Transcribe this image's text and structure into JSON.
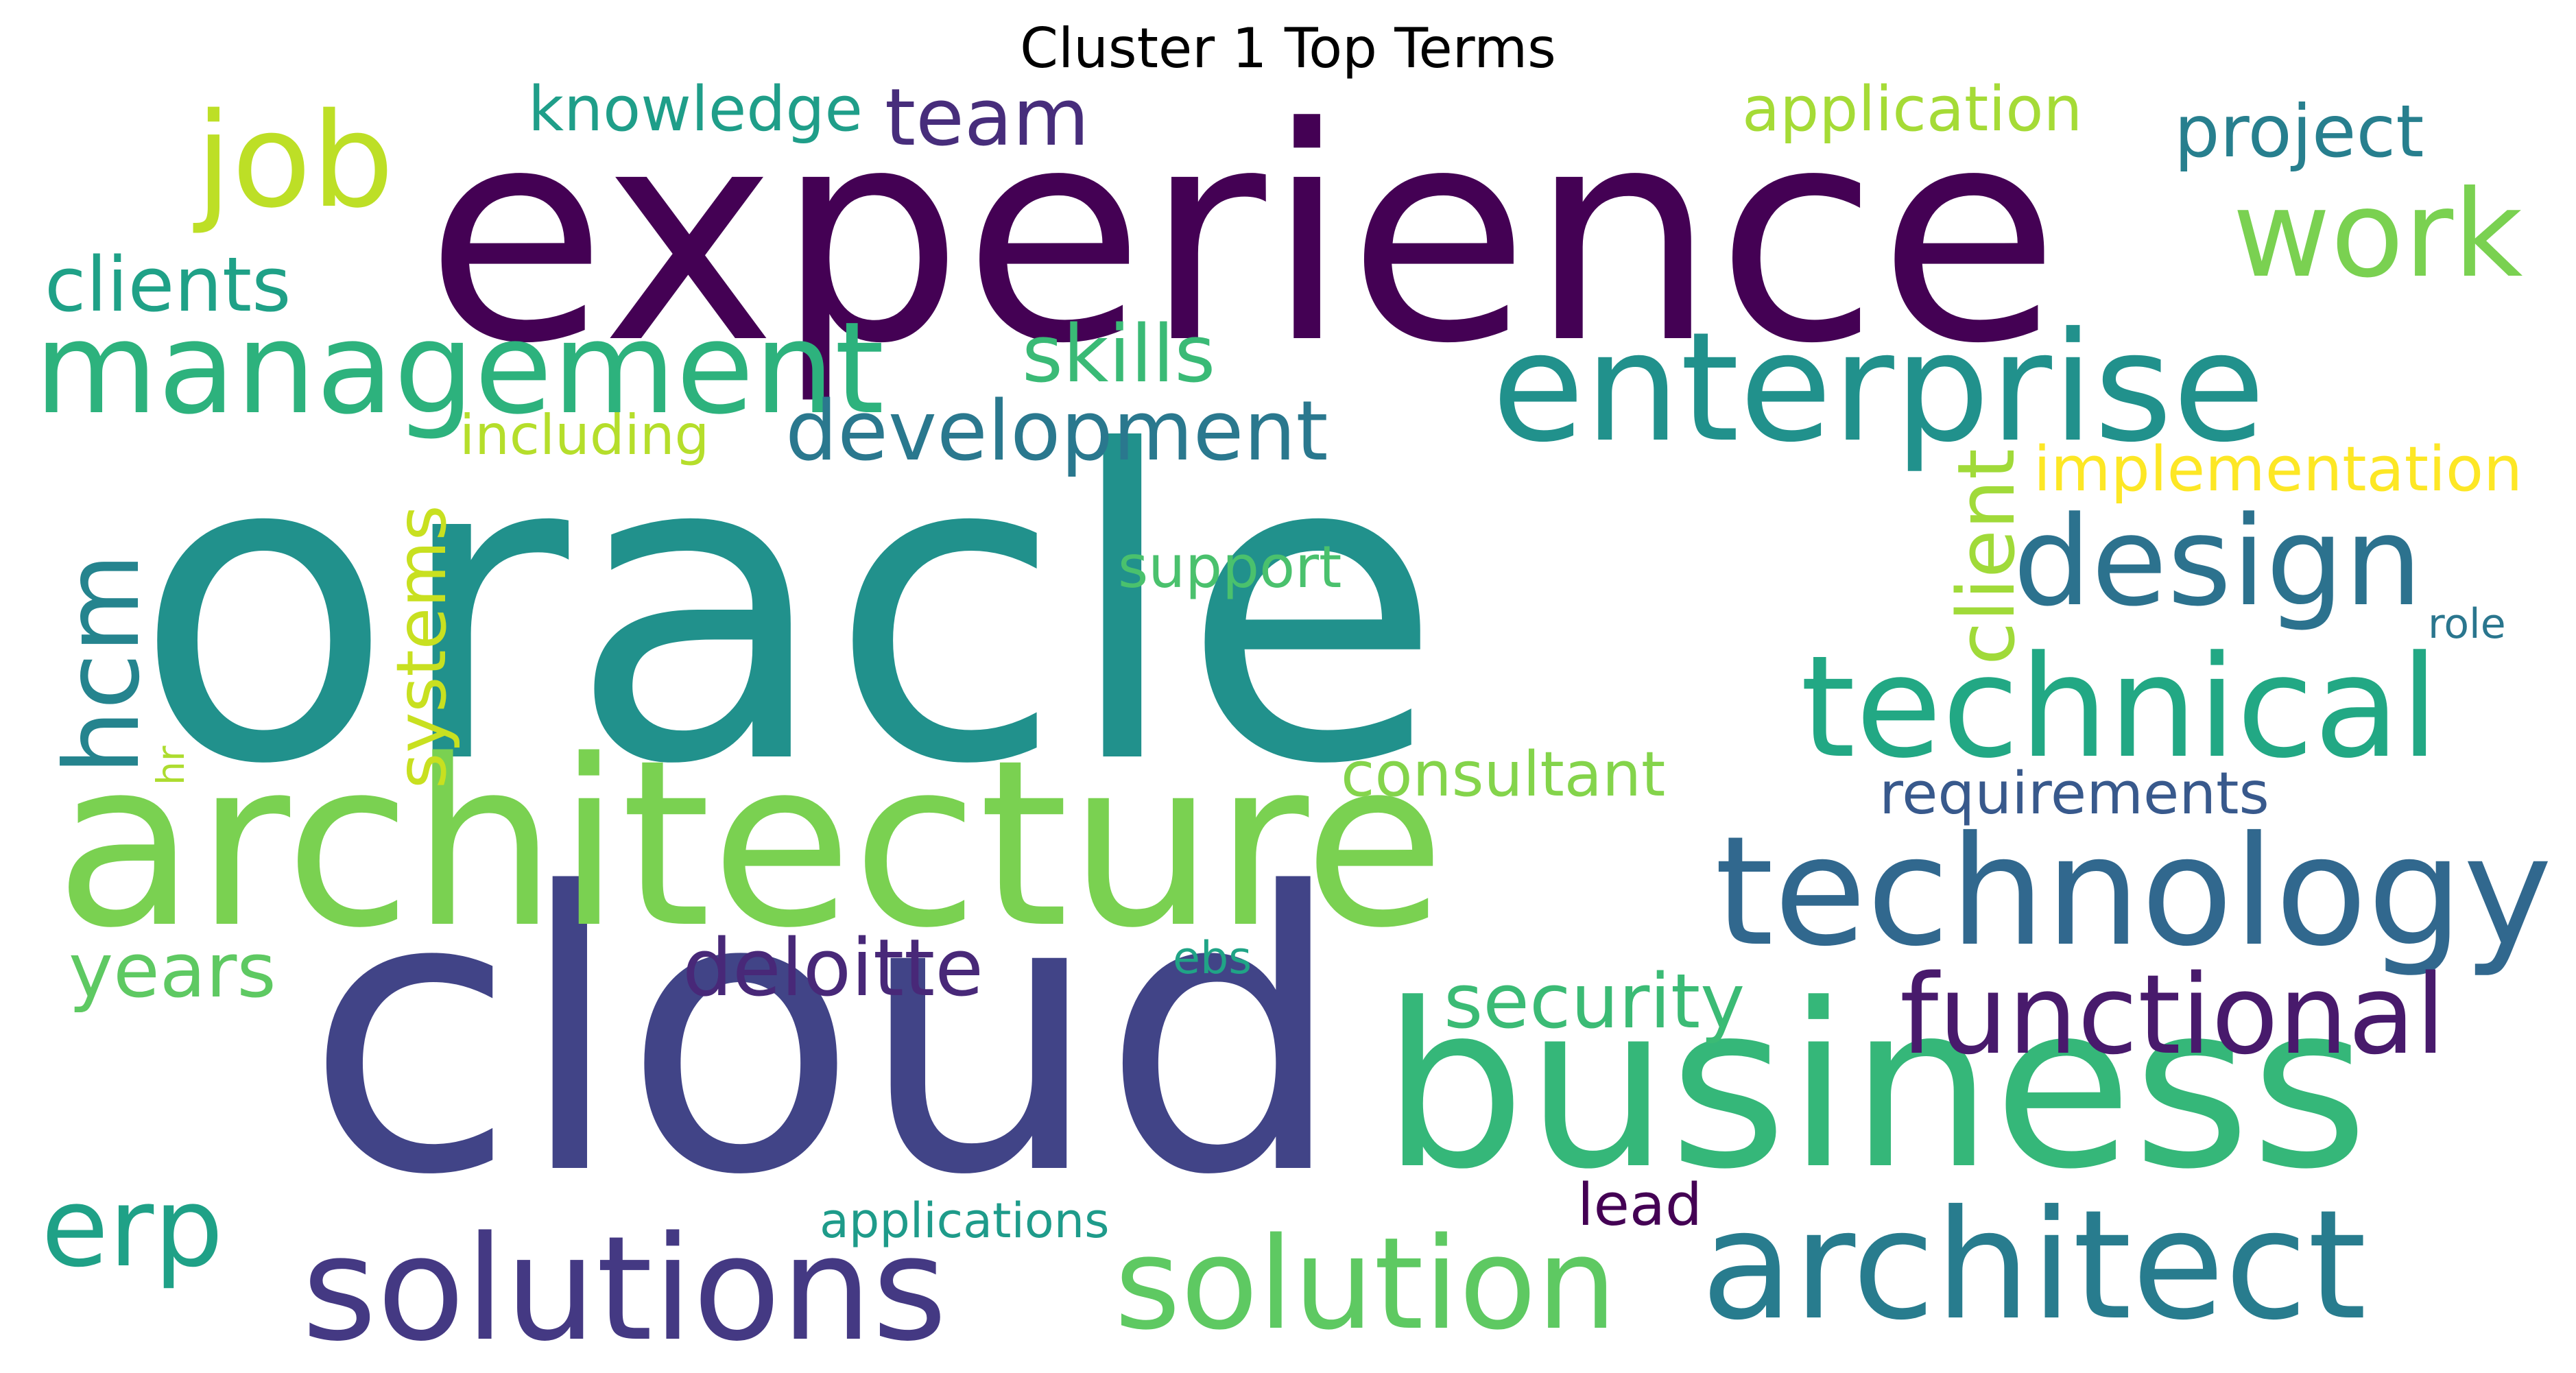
{
  "title": "Cluster 1 Top Terms",
  "words": [
    {
      "text": "oracle",
      "color": "#21918c"
    },
    {
      "text": "experience",
      "color": "#440154"
    },
    {
      "text": "cloud",
      "color": "#414487"
    },
    {
      "text": "architecture",
      "color": "#7ad151"
    },
    {
      "text": "business",
      "color": "#35b779"
    },
    {
      "text": "enterprise",
      "color": "#21918c"
    },
    {
      "text": "technology",
      "color": "#31688e"
    },
    {
      "text": "architect",
      "color": "#287c8e"
    },
    {
      "text": "solutions",
      "color": "#443983"
    },
    {
      "text": "technical",
      "color": "#22a884"
    },
    {
      "text": "management",
      "color": "#2db27d"
    },
    {
      "text": "solution",
      "color": "#5ec962"
    },
    {
      "text": "design",
      "color": "#2c728e"
    },
    {
      "text": "functional",
      "color": "#481a6c"
    },
    {
      "text": "job",
      "color": "#bddf26"
    },
    {
      "text": "work",
      "color": "#7ad151"
    },
    {
      "text": "development",
      "color": "#2a788e"
    },
    {
      "text": "hcm",
      "color": "#25848e"
    },
    {
      "text": "erp",
      "color": "#1fa187"
    },
    {
      "text": "project",
      "color": "#277f8e"
    },
    {
      "text": "deloitte",
      "color": "#482878"
    },
    {
      "text": "security",
      "color": "#3bbb75"
    },
    {
      "text": "team",
      "color": "#472d7b"
    },
    {
      "text": "skills",
      "color": "#3aba76"
    },
    {
      "text": "clients",
      "color": "#1fa187"
    },
    {
      "text": "client",
      "color": "#a0da39"
    },
    {
      "text": "systems",
      "color": "#c8e020"
    },
    {
      "text": "years",
      "color": "#5ec962"
    },
    {
      "text": "knowledge",
      "color": "#1f9e89"
    },
    {
      "text": "application",
      "color": "#a5db36"
    },
    {
      "text": "implementation",
      "color": "#fde725"
    },
    {
      "text": "consultant",
      "color": "#84d44b"
    },
    {
      "text": "requirements",
      "color": "#38598c"
    },
    {
      "text": "including",
      "color": "#b5de2b"
    },
    {
      "text": "support",
      "color": "#4ac16d"
    },
    {
      "text": "applications",
      "color": "#1e9b8a"
    },
    {
      "text": "lead",
      "color": "#440154"
    },
    {
      "text": "ebs",
      "color": "#20a486"
    },
    {
      "text": "role",
      "color": "#2a768e"
    },
    {
      "text": "hr",
      "color": "#addc30"
    }
  ]
}
